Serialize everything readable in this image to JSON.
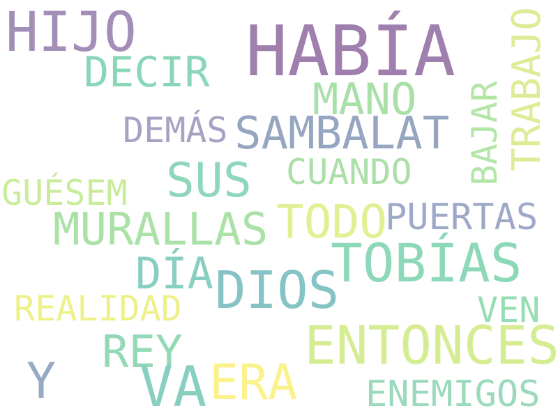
{
  "words": [
    {
      "text": "HABÍA",
      "color": "#9e7fae"
    },
    {
      "text": "HIJO",
      "color": "#a38eb8"
    },
    {
      "text": "DECIR",
      "color": "#8ad6b8"
    },
    {
      "text": "TRABAJO",
      "color": "#dfeb97"
    },
    {
      "text": "MANO",
      "color": "#a9e0a8"
    },
    {
      "text": "DEMÁS",
      "color": "#a4a3c4"
    },
    {
      "text": "SAMBALAT",
      "color": "#96a6c1"
    },
    {
      "text": "BAJAR",
      "color": "#b3e6a6"
    },
    {
      "text": "SUS",
      "color": "#8fd7bb"
    },
    {
      "text": "CUANDO",
      "color": "#acdfa8"
    },
    {
      "text": "GUÉSEM",
      "color": "#c9ec9a"
    },
    {
      "text": "TODO",
      "color": "#e0f092"
    },
    {
      "text": "PUERTAS",
      "color": "#9ea9c7"
    },
    {
      "text": "MURALLAS",
      "color": "#a9e1a6"
    },
    {
      "text": "TOBÍAS",
      "color": "#8dd8b8"
    },
    {
      "text": "DÍA",
      "color": "#88cfc1"
    },
    {
      "text": "DIOS",
      "color": "#86c3c5"
    },
    {
      "text": "REALIDAD",
      "color": "#eef08a"
    },
    {
      "text": "VEN",
      "color": "#96ddb3"
    },
    {
      "text": "ENTONCES",
      "color": "#d5ed92"
    },
    {
      "text": "REY",
      "color": "#93d9b5"
    },
    {
      "text": "Y",
      "color": "#97a8c2"
    },
    {
      "text": "VA",
      "color": "#88cfc0"
    },
    {
      "text": "ERA",
      "color": "#fbf28d"
    },
    {
      "text": "ENEMIGOS",
      "color": "#9ad9bb"
    }
  ]
}
